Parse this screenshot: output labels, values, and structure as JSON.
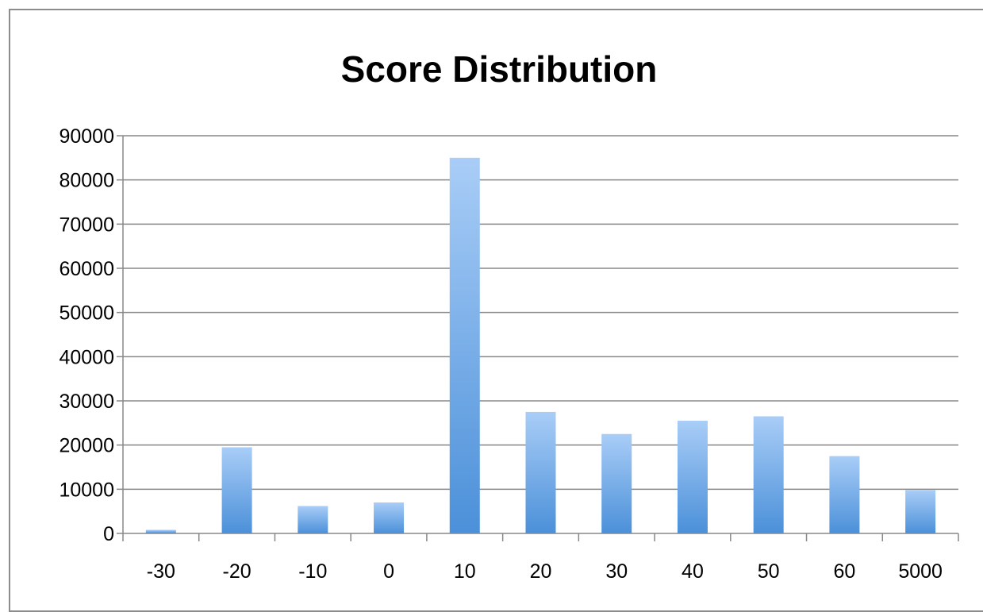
{
  "chart_data": {
    "type": "bar",
    "title": "Score Distribution",
    "xlabel": "",
    "ylabel": "",
    "categories": [
      "-30",
      "-20",
      "-10",
      "0",
      "10",
      "20",
      "30",
      "40",
      "50",
      "60",
      "5000"
    ],
    "values": [
      800,
      19500,
      6200,
      7000,
      85000,
      27500,
      22500,
      25500,
      26500,
      17500,
      9800
    ],
    "ylim": [
      0,
      90000
    ],
    "yticks": [
      "0",
      "10000",
      "20000",
      "30000",
      "40000",
      "50000",
      "60000",
      "70000",
      "80000",
      "90000"
    ],
    "grid": true,
    "legend": "none",
    "colors": {
      "bar_top": "#a9cdf7",
      "bar_bottom": "#4b90d9",
      "grid": "#888888",
      "axis": "#888888",
      "frame": "#8c8c8c"
    }
  }
}
